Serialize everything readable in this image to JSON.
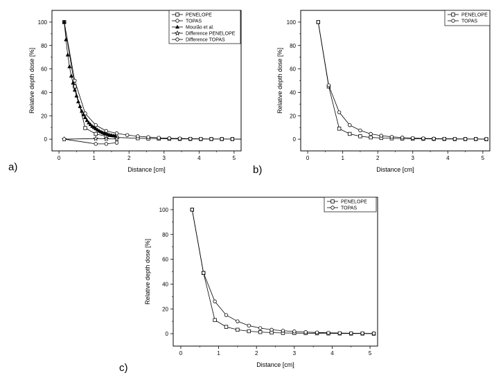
{
  "chart_data": [
    {
      "panel_label": "a)",
      "type": "line",
      "xlabel": "Distance [cm]",
      "ylabel": "Relative depth dose [%]",
      "xlim": [
        -0.2,
        5.2
      ],
      "ylim": [
        -10,
        110
      ],
      "xticks": [
        0,
        1,
        2,
        3,
        4,
        5
      ],
      "yticks": [
        0,
        20,
        40,
        60,
        80,
        100
      ],
      "legend_position": "top-right",
      "series": [
        {
          "name": "PENELOPE",
          "marker": "square",
          "x": [
            0.15,
            0.45,
            0.75,
            1.05,
            1.35,
            1.65,
            2.25,
            2.55,
            2.85,
            3.15,
            3.45,
            3.75,
            4.05,
            4.35,
            4.65,
            4.95,
            5.25
          ],
          "y": [
            100,
            45,
            9.5,
            4.5,
            2.5,
            1.5,
            0.8,
            0.6,
            0.4,
            0.3,
            0.2,
            0.2,
            0.1,
            0.1,
            0.1,
            0.1,
            0
          ]
        },
        {
          "name": "TOPAS",
          "marker": "circle",
          "x": [
            0.15,
            0.45,
            0.75,
            1.05,
            1.35,
            1.65,
            1.95,
            2.25,
            2.55,
            2.85,
            3.15,
            3.45,
            3.75,
            4.05,
            4.35,
            4.65,
            4.95,
            5.25
          ],
          "y": [
            100,
            50,
            22,
            12,
            7,
            5,
            3.5,
            2.5,
            1.8,
            1.2,
            0.8,
            0.6,
            0.4,
            0.3,
            0.2,
            0.2,
            0.1,
            0
          ]
        },
        {
          "name": "Mourão et al.",
          "marker": "filled-triangle",
          "x": [
            0.15,
            0.2,
            0.25,
            0.3,
            0.35,
            0.4,
            0.45,
            0.5,
            0.55,
            0.6,
            0.65,
            0.7,
            0.75,
            0.8,
            0.85,
            0.9,
            0.95,
            1.0,
            1.05,
            1.1,
            1.15,
            1.2,
            1.25,
            1.3,
            1.35,
            1.4,
            1.45,
            1.5,
            1.55,
            1.6
          ],
          "y": [
            100,
            85,
            72,
            62,
            54,
            48,
            42,
            37,
            32,
            28,
            24,
            21,
            18.5,
            16,
            14,
            12.5,
            11,
            10,
            9,
            8,
            7,
            6.3,
            5.6,
            5,
            4.5,
            4,
            3.6,
            3.3,
            3,
            2.8
          ]
        },
        {
          "name": "Difference PENELOPE",
          "marker": "star",
          "x": [
            0.15,
            1.05,
            1.35,
            1.65
          ],
          "y": [
            0,
            0.5,
            0.3,
            0.2
          ]
        },
        {
          "name": "Difference TOPAS",
          "marker": "circle",
          "x": [
            0.15,
            1.05,
            1.35,
            1.65
          ],
          "y": [
            0,
            -4,
            -4,
            -3
          ]
        }
      ]
    },
    {
      "panel_label": "b)",
      "type": "line",
      "xlabel": "Distance [cm]",
      "ylabel": "Relative depth dose [%]",
      "xlim": [
        -0.2,
        5.2
      ],
      "ylim": [
        -10,
        110
      ],
      "xticks": [
        0,
        1,
        2,
        3,
        4,
        5
      ],
      "yticks": [
        0,
        20,
        40,
        60,
        80,
        100
      ],
      "legend_position": "top-right",
      "series": [
        {
          "name": "PENELOPE",
          "marker": "square",
          "x": [
            0.3,
            0.6,
            0.9,
            1.2,
            1.5,
            1.8,
            2.1,
            2.4,
            2.7,
            3.0,
            3.3,
            3.6,
            3.9,
            4.2,
            4.5,
            4.8,
            5.1
          ],
          "y": [
            100,
            45,
            9,
            4.5,
            2.5,
            1.5,
            1.0,
            0.7,
            0.5,
            0.4,
            0.3,
            0.2,
            0.2,
            0.1,
            0.1,
            0.1,
            0
          ]
        },
        {
          "name": "TOPAS",
          "marker": "circle",
          "x": [
            0.3,
            0.6,
            0.9,
            1.2,
            1.5,
            1.8,
            2.1,
            2.4,
            2.7,
            3.0,
            3.3,
            3.6,
            3.9,
            4.2,
            4.5,
            4.8,
            5.1
          ],
          "y": [
            100,
            46,
            23,
            12,
            7.5,
            4.5,
            3.0,
            2.0,
            1.4,
            1.0,
            0.7,
            0.5,
            0.4,
            0.3,
            0.2,
            0.2,
            0.1
          ]
        }
      ]
    },
    {
      "panel_label": "c)",
      "type": "line",
      "xlabel": "Distance [cm]",
      "ylabel": "Relative depth dose [%]",
      "xlim": [
        -0.2,
        5.2
      ],
      "ylim": [
        -10,
        110
      ],
      "xticks": [
        0,
        1,
        2,
        3,
        4,
        5
      ],
      "yticks": [
        0,
        20,
        40,
        60,
        80,
        100
      ],
      "legend_position": "top-right",
      "series": [
        {
          "name": "PENELOPE",
          "marker": "square",
          "x": [
            0.3,
            0.6,
            0.9,
            1.2,
            1.5,
            1.8,
            2.1,
            2.4,
            2.7,
            3.0,
            3.3,
            3.6,
            3.9,
            4.2,
            4.5,
            4.8,
            5.1
          ],
          "y": [
            100,
            49,
            11,
            5.5,
            3.2,
            2.0,
            1.3,
            0.9,
            0.6,
            0.5,
            0.4,
            0.3,
            0.2,
            0.2,
            0.1,
            0.1,
            0
          ]
        },
        {
          "name": "TOPAS",
          "marker": "circle",
          "x": [
            0.3,
            0.6,
            0.9,
            1.2,
            1.5,
            1.8,
            2.1,
            2.4,
            2.7,
            3.0,
            3.3,
            3.6,
            3.9,
            4.2,
            4.5,
            4.8,
            5.1
          ],
          "y": [
            100,
            49,
            26,
            15,
            10,
            6.5,
            4.5,
            3.2,
            2.4,
            1.8,
            1.3,
            1.0,
            0.7,
            0.5,
            0.4,
            0.3,
            0.2
          ]
        }
      ]
    }
  ]
}
